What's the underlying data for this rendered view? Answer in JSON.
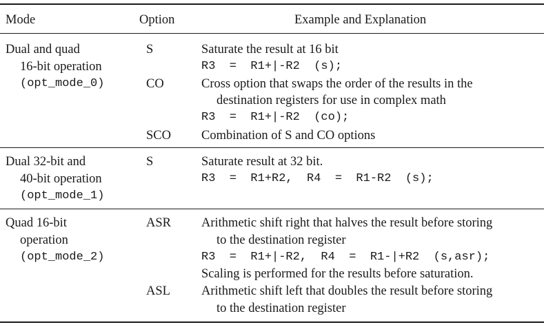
{
  "header": {
    "mode": "Mode",
    "option": "Option",
    "explanation": "Example and Explanation"
  },
  "groups": [
    {
      "mode_lines": [
        "Dual and quad",
        "16-bit operation",
        "(opt_mode_0)"
      ],
      "options": [
        {
          "option": "S",
          "lines": [
            "Saturate the result at 16 bit",
            "R3 = R1+|-R2 (s);"
          ]
        },
        {
          "option": "CO",
          "lines": [
            "Cross option that swaps the order of the results in the",
            "destination registers for use in complex math",
            "R3 = R1+|-R2 (co);"
          ]
        },
        {
          "option": "SCO",
          "lines": [
            "Combination of S and CO options"
          ]
        }
      ]
    },
    {
      "mode_lines": [
        "Dual 32-bit and",
        "40-bit operation",
        "(opt_mode_1)"
      ],
      "options": [
        {
          "option": "S",
          "lines": [
            "Saturate result at 32 bit.",
            "R3 = R1+R2, R4 = R1-R2 (s);"
          ]
        }
      ]
    },
    {
      "mode_lines": [
        "Quad 16-bit",
        "operation",
        "(opt_mode_2)"
      ],
      "options": [
        {
          "option": "ASR",
          "lines": [
            "Arithmetic shift right that halves the result before storing",
            "to the destination register",
            "R3 = R1+|-R2, R4 = R1-|+R2 (s,asr);",
            "Scaling is performed for the results before saturation."
          ]
        },
        {
          "option": "ASL",
          "lines": [
            "Arithmetic shift left that doubles the result before storing",
            "to the destination register"
          ]
        }
      ]
    }
  ]
}
